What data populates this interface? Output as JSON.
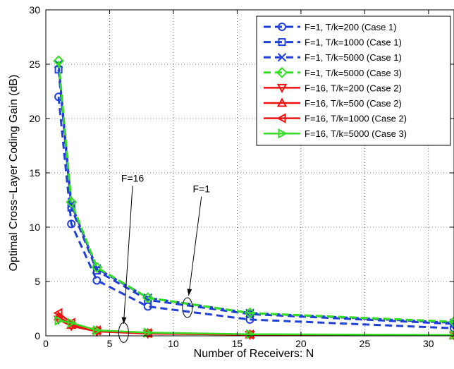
{
  "chart_data": {
    "type": "line",
    "title": "",
    "xlabel": "Number of Receivers: N",
    "ylabel": "Optimal Cross−Layer Coding Gain (dB)",
    "xlim": [
      0,
      32
    ],
    "ylim": [
      0,
      30
    ],
    "xticks": [
      0,
      5,
      10,
      15,
      20,
      25,
      30
    ],
    "yticks": [
      0,
      5,
      10,
      15,
      20,
      25,
      30
    ],
    "grid": true,
    "legend_position": "top-right",
    "x": [
      1,
      2,
      4,
      8,
      16,
      32
    ],
    "series": [
      {
        "name": "F=1, T/k=200 (Case 1)",
        "values": [
          22.0,
          10.3,
          5.1,
          2.7,
          1.5,
          0.7
        ],
        "color": "#1f3fd6",
        "dash": true,
        "marker": "circle"
      },
      {
        "name": "F=1, T/k=1000 (Case 1)",
        "values": [
          24.5,
          11.8,
          6.0,
          3.3,
          2.0,
          1.1
        ],
        "color": "#1f3fd6",
        "dash": true,
        "marker": "square"
      },
      {
        "name": "F=1, T/k=5000 (Case 1)",
        "values": [
          25.0,
          12.1,
          6.2,
          3.5,
          2.1,
          1.2
        ],
        "color": "#1f3fd6",
        "dash": true,
        "marker": "x"
      },
      {
        "name": "F=1, T/k=5000 (Case 3)",
        "values": [
          25.3,
          12.3,
          6.3,
          3.5,
          2.1,
          1.3
        ],
        "color": "#33dd22",
        "dash": true,
        "marker": "diamond"
      },
      {
        "name": "F=16, T/k=200 (Case 2)",
        "values": [
          1.5,
          0.9,
          0.4,
          0.2,
          0.1,
          0.05
        ],
        "color": "#ee1111",
        "dash": false,
        "marker": "triangle-down"
      },
      {
        "name": "F=16, T/k=500 (Case 2)",
        "values": [
          1.8,
          1.0,
          0.5,
          0.25,
          0.12,
          0.06
        ],
        "color": "#ee1111",
        "dash": false,
        "marker": "triangle-up"
      },
      {
        "name": "F=16, T/k=1000 (Case 2)",
        "values": [
          2.1,
          1.2,
          0.5,
          0.25,
          0.12,
          0.06
        ],
        "color": "#ee1111",
        "dash": false,
        "marker": "triangle-left"
      },
      {
        "name": "F=16, T/k=5000 (Case 3)",
        "values": [
          1.4,
          1.2,
          0.5,
          0.3,
          0.15,
          0.08
        ],
        "color": "#33dd22",
        "dash": false,
        "marker": "triangle-right"
      }
    ],
    "annotations": [
      {
        "text": "F=16",
        "label_x": 6.8,
        "label_y": 14.2,
        "arrow_to_x": 6.1,
        "arrow_to_y": 1.1,
        "ellipse_x": 6.1,
        "ellipse_y": 0.3
      },
      {
        "text": "F=1",
        "label_x": 12.2,
        "label_y": 13.2,
        "arrow_to_x": 11.2,
        "arrow_to_y": 3.7,
        "ellipse_x": 11.1,
        "ellipse_y": 2.6
      }
    ]
  }
}
